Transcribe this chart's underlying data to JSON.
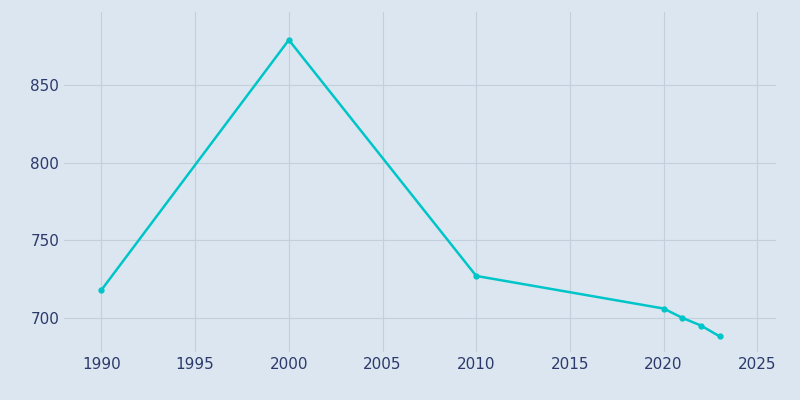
{
  "years": [
    1990,
    2000,
    2010,
    2020,
    2021,
    2022,
    2023
  ],
  "population": [
    718,
    879,
    727,
    706,
    700,
    695,
    688
  ],
  "line_color": "#00C5C8",
  "marker_color": "#00C5C8",
  "background_color": "#dce6f0",
  "plot_bg_color": "#dce6f0",
  "grid_color": "#c2d0dc",
  "tick_color": "#2b3a6b",
  "xlim": [
    1988,
    2026
  ],
  "ylim": [
    678,
    897
  ],
  "xticks": [
    1990,
    1995,
    2000,
    2005,
    2010,
    2015,
    2020,
    2025
  ],
  "yticks": [
    700,
    750,
    800,
    850
  ],
  "line_width": 1.8,
  "marker_size": 3.5
}
